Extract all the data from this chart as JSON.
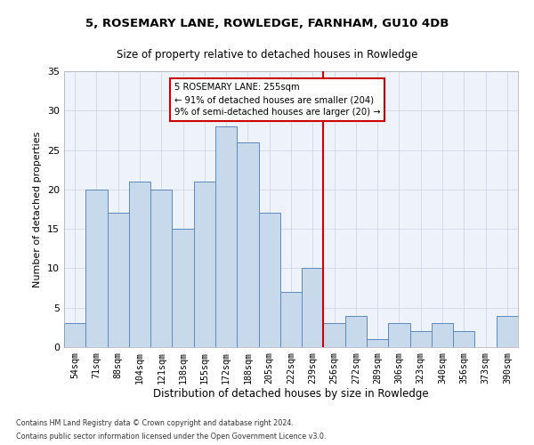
{
  "title": "5, ROSEMARY LANE, ROWLEDGE, FARNHAM, GU10 4DB",
  "subtitle": "Size of property relative to detached houses in Rowledge",
  "xlabel": "Distribution of detached houses by size in Rowledge",
  "ylabel": "Number of detached properties",
  "categories": [
    "54sqm",
    "71sqm",
    "88sqm",
    "104sqm",
    "121sqm",
    "138sqm",
    "155sqm",
    "172sqm",
    "188sqm",
    "205sqm",
    "222sqm",
    "239sqm",
    "256sqm",
    "272sqm",
    "289sqm",
    "306sqm",
    "323sqm",
    "340sqm",
    "356sqm",
    "373sqm",
    "390sqm"
  ],
  "values": [
    3,
    20,
    17,
    21,
    20,
    15,
    21,
    28,
    26,
    17,
    7,
    10,
    3,
    4,
    1,
    3,
    2,
    3,
    2,
    0,
    4
  ],
  "bar_color": "#c9d9ec",
  "bar_edge_color": "#5a8abf",
  "grid_color": "#d0d8e8",
  "vline_x_index": 12,
  "vline_color": "#cc0000",
  "annotation_text": "5 ROSEMARY LANE: 255sqm\n← 91% of detached houses are smaller (204)\n9% of semi-detached houses are larger (20) →",
  "annotation_box_color": "#cc0000",
  "ylim": [
    0,
    35
  ],
  "yticks": [
    0,
    5,
    10,
    15,
    20,
    25,
    30,
    35
  ],
  "footer1": "Contains HM Land Registry data © Crown copyright and database right 2024.",
  "footer2": "Contains public sector information licensed under the Open Government Licence v3.0.",
  "background_color": "#eef2fa",
  "fig_background_color": "#ffffff"
}
